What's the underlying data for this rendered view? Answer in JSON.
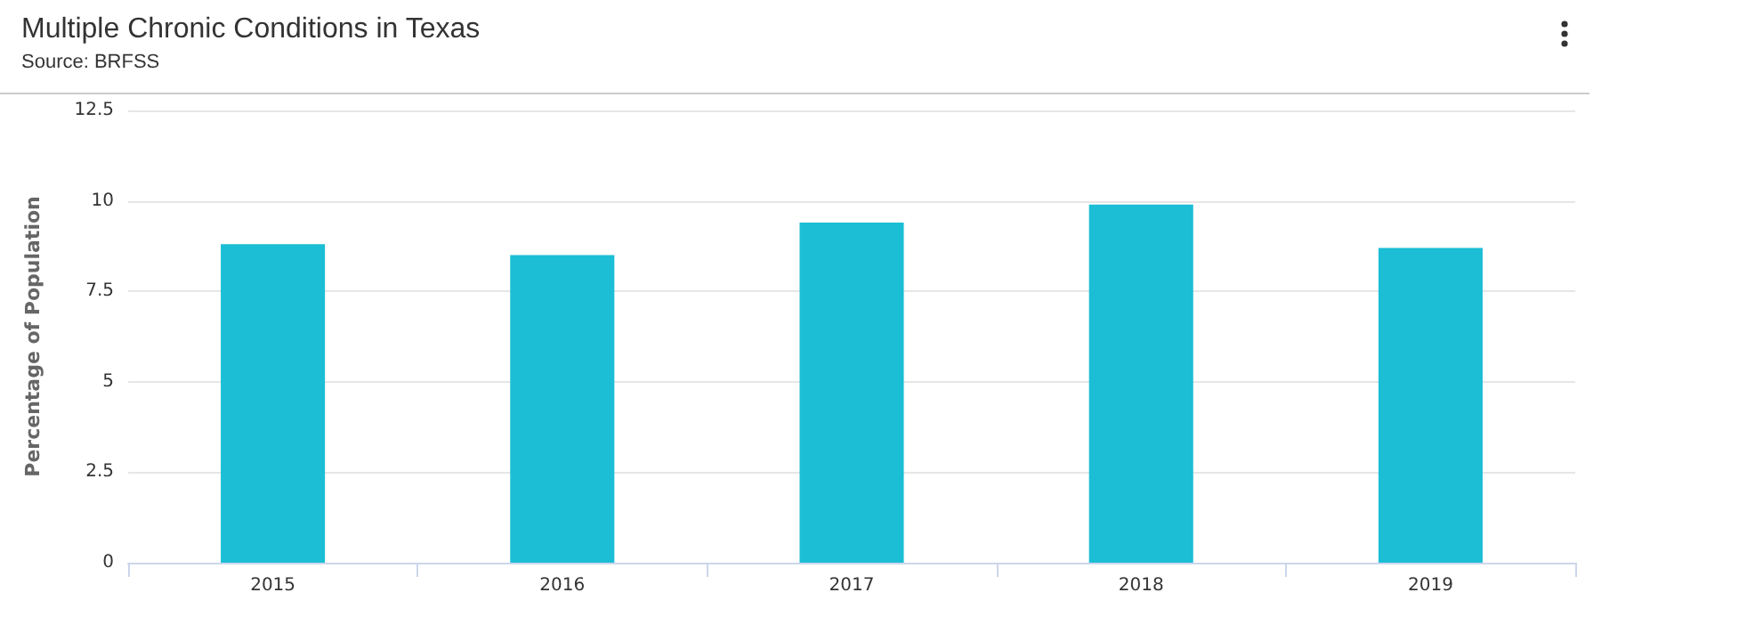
{
  "chart_data": {
    "type": "bar",
    "title": "Multiple Chronic Conditions in Texas",
    "subtitle": "Source: BRFSS",
    "ylabel": "Percentage of Population",
    "categories": [
      "2015",
      "2016",
      "2017",
      "2018",
      "2019"
    ],
    "values": [
      8.8,
      8.5,
      9.4,
      9.9,
      8.7
    ],
    "color": "#1bbed5",
    "ylim": [
      0,
      12.5
    ],
    "yticks": [
      0,
      2.5,
      5,
      7.5,
      10,
      12.5
    ],
    "grid": "y"
  }
}
